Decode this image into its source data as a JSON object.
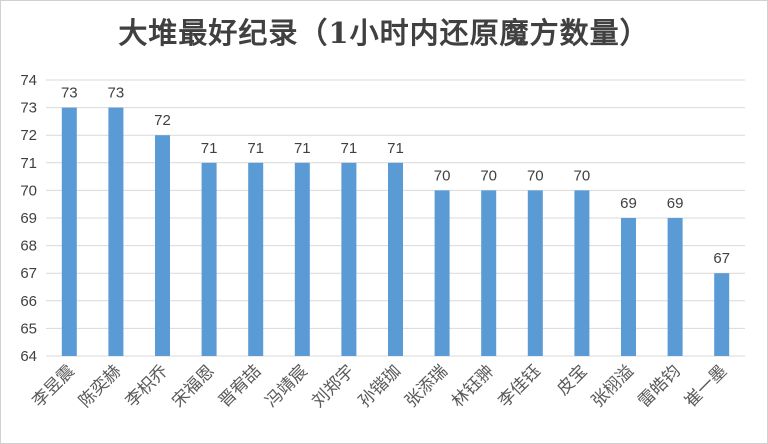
{
  "chart_data": {
    "type": "bar",
    "title": "大堆最好纪录（1小时内还原魔方数量）",
    "categories": [
      "李昱震",
      "陈奕赫",
      "李枳乔",
      "宋福恩",
      "晋宥喆",
      "冯靖宸",
      "刘郑宇",
      "孙锴珈",
      "张添瑞",
      "林钰翀",
      "李佳钰",
      "皮宝",
      "张栩溢",
      "雷皓钧",
      "崔一墨"
    ],
    "values": [
      73,
      73,
      72,
      71,
      71,
      71,
      71,
      71,
      70,
      70,
      70,
      70,
      69,
      69,
      67
    ],
    "ylim": [
      64,
      74
    ],
    "yticks": [
      64,
      65,
      66,
      67,
      68,
      69,
      70,
      71,
      72,
      73,
      74
    ],
    "grid": true,
    "bar_color": "#5b9bd5",
    "data_labels": true
  }
}
